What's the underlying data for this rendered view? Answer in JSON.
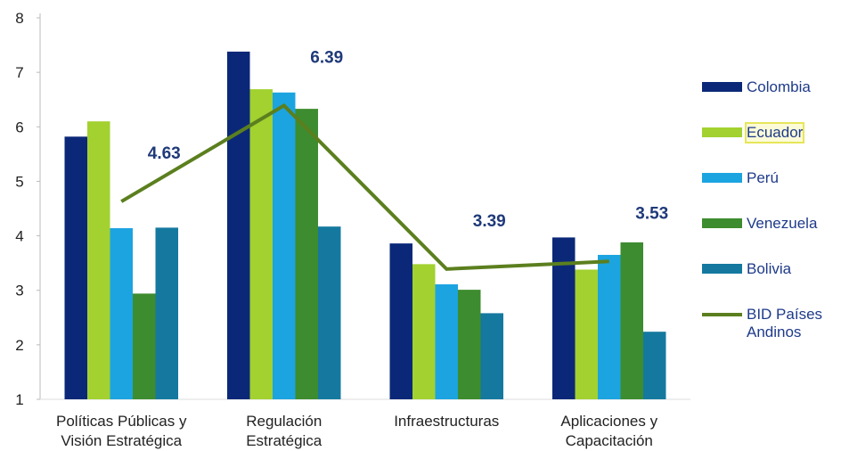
{
  "chart_data": {
    "type": "bar",
    "categories": [
      [
        "Políticas Públicas y",
        "Visión Estratégica"
      ],
      [
        "Regulación",
        "Estratégica"
      ],
      [
        "Infraestructuras"
      ],
      [
        "Aplicaciones y",
        "Capacitación"
      ]
    ],
    "series": [
      {
        "name": "Colombia",
        "color": "#0b2878",
        "values": [
          5.82,
          7.38,
          3.86,
          3.97
        ]
      },
      {
        "name": "Ecuador",
        "color": "#a2d130",
        "values": [
          6.1,
          6.69,
          3.48,
          3.38
        ]
      },
      {
        "name": "Perú",
        "color": "#1ca4e0",
        "values": [
          4.14,
          6.63,
          3.11,
          3.65
        ]
      },
      {
        "name": "Venezuela",
        "color": "#3d8c2f",
        "values": [
          2.94,
          6.33,
          3.01,
          3.88
        ]
      },
      {
        "name": "Bolivia",
        "color": "#15799f",
        "values": [
          4.15,
          4.17,
          2.58,
          2.24
        ]
      },
      {
        "name": "BID Países Andinos",
        "color": "#5b7f1e",
        "type": "line",
        "values": [
          4.63,
          6.39,
          3.39,
          3.53
        ]
      }
    ],
    "ylim": [
      1,
      8
    ],
    "yticks": [
      1,
      2,
      3,
      4,
      5,
      6,
      7,
      8
    ],
    "legend": "right"
  }
}
